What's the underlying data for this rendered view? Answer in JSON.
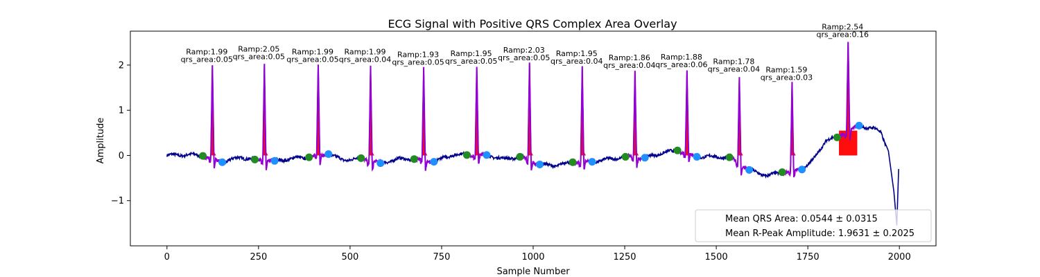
{
  "chart_data": {
    "type": "line",
    "title": "ECG Signal with Positive QRS Complex Area Overlay",
    "xlabel": "Sample Number",
    "ylabel": "Amplitude",
    "xlim": [
      -100,
      2100
    ],
    "ylim": [
      -2.0,
      2.75
    ],
    "xticks": [
      0,
      250,
      500,
      750,
      1000,
      1250,
      1500,
      1750,
      2000
    ],
    "yticks": [
      -1,
      0,
      1,
      2
    ],
    "grid": false,
    "colors": {
      "signal": "#00008b",
      "qrs_segment": "#9400d3",
      "qrs_area": "#ff0000",
      "q_marker": "#228b22",
      "s_marker": "#1e90ff"
    },
    "beats": [
      {
        "q": 98,
        "r": 124,
        "s": 151,
        "q_amp": -0.01,
        "r_amp": 1.99,
        "s_amp": -0.15,
        "ramp_label": "Ramp:1.99",
        "area_label": "qrs_area:0.05"
      },
      {
        "q": 240,
        "r": 266,
        "s": 294,
        "q_amp": -0.09,
        "r_amp": 2.05,
        "s_amp": -0.12,
        "ramp_label": "Ramp:2.05",
        "area_label": "qrs_area:0.05"
      },
      {
        "q": 388,
        "r": 413,
        "s": 441,
        "q_amp": -0.04,
        "r_amp": 1.99,
        "s_amp": 0.03,
        "ramp_label": "Ramp:1.99",
        "area_label": "qrs_area:0.05"
      },
      {
        "q": 530,
        "r": 556,
        "s": 583,
        "q_amp": -0.06,
        "r_amp": 1.99,
        "s_amp": -0.17,
        "ramp_label": "Ramp:1.99",
        "area_label": "qrs_area:0.04"
      },
      {
        "q": 675,
        "r": 701,
        "s": 729,
        "q_amp": -0.08,
        "r_amp": 1.93,
        "s_amp": -0.14,
        "ramp_label": "Ramp:1.93",
        "area_label": "qrs_area:0.05"
      },
      {
        "q": 819,
        "r": 846,
        "s": 873,
        "q_amp": 0.01,
        "r_amp": 1.95,
        "s_amp": 0.01,
        "ramp_label": "Ramp:1.95",
        "area_label": "qrs_area:0.05"
      },
      {
        "q": 964,
        "r": 990,
        "s": 1018,
        "q_amp": -0.03,
        "r_amp": 2.03,
        "s_amp": -0.2,
        "ramp_label": "Ramp:2.03",
        "area_label": "qrs_area:0.05"
      },
      {
        "q": 1108,
        "r": 1134,
        "s": 1161,
        "q_amp": -0.15,
        "r_amp": 1.95,
        "s_amp": -0.14,
        "ramp_label": "Ramp:1.95",
        "area_label": "qrs_area:0.04"
      },
      {
        "q": 1252,
        "r": 1278,
        "s": 1305,
        "q_amp": -0.03,
        "r_amp": 1.86,
        "s_amp": -0.05,
        "ramp_label": "Ramp:1.86",
        "area_label": "qrs_area:0.04"
      },
      {
        "q": 1394,
        "r": 1420,
        "s": 1447,
        "q_amp": 0.11,
        "r_amp": 1.88,
        "s_amp": -0.03,
        "ramp_label": "Ramp:1.88",
        "area_label": "qrs_area:0.06"
      },
      {
        "q": 1536,
        "r": 1563,
        "s": 1590,
        "q_amp": -0.04,
        "r_amp": 1.78,
        "s_amp": -0.32,
        "ramp_label": "Ramp:1.78",
        "area_label": "qrs_area:0.04"
      },
      {
        "q": 1680,
        "r": 1707,
        "s": 1734,
        "q_amp": -0.37,
        "r_amp": 1.59,
        "s_amp": -0.31,
        "ramp_label": "Ramp:1.59",
        "area_label": "qrs_area:0.03"
      },
      {
        "q": 1830,
        "r": 1860,
        "s": 1890,
        "q_amp": 0.4,
        "r_amp": 2.54,
        "s_amp": 0.66,
        "ramp_label": "Ramp:2.54",
        "area_label": "qrs_area:0.16"
      }
    ],
    "baseline_points": [
      [
        0,
        0.0
      ],
      [
        60,
        0.02
      ],
      [
        98,
        -0.01
      ],
      [
        151,
        -0.15
      ],
      [
        200,
        -0.04
      ],
      [
        240,
        -0.09
      ],
      [
        294,
        -0.12
      ],
      [
        350,
        -0.06
      ],
      [
        388,
        -0.04
      ],
      [
        441,
        0.03
      ],
      [
        480,
        -0.1
      ],
      [
        530,
        -0.06
      ],
      [
        583,
        -0.17
      ],
      [
        630,
        -0.08
      ],
      [
        675,
        -0.08
      ],
      [
        729,
        -0.14
      ],
      [
        780,
        0.02
      ],
      [
        819,
        0.01
      ],
      [
        873,
        0.01
      ],
      [
        920,
        -0.08
      ],
      [
        964,
        -0.03
      ],
      [
        1018,
        -0.2
      ],
      [
        1060,
        -0.22
      ],
      [
        1108,
        -0.15
      ],
      [
        1161,
        -0.14
      ],
      [
        1210,
        -0.08
      ],
      [
        1252,
        -0.03
      ],
      [
        1305,
        -0.05
      ],
      [
        1350,
        0.05
      ],
      [
        1394,
        0.11
      ],
      [
        1447,
        -0.03
      ],
      [
        1500,
        -0.03
      ],
      [
        1536,
        -0.04
      ],
      [
        1590,
        -0.32
      ],
      [
        1640,
        -0.45
      ],
      [
        1680,
        -0.37
      ],
      [
        1734,
        -0.31
      ],
      [
        1770,
        -0.05
      ],
      [
        1800,
        0.35
      ],
      [
        1830,
        0.4
      ],
      [
        1890,
        0.66
      ],
      [
        1930,
        0.6
      ],
      [
        1950,
        0.5
      ],
      [
        1970,
        0.1
      ],
      [
        1985,
        -0.8
      ],
      [
        1993,
        -1.55
      ],
      [
        1998,
        -0.3
      ]
    ],
    "legend": {
      "placement": "lower-right",
      "entries": [
        "Mean QRS Area: 0.0544 ± 0.0315",
        "Mean R-Peak Amplitude: 1.9631 ± 0.2025"
      ]
    }
  }
}
